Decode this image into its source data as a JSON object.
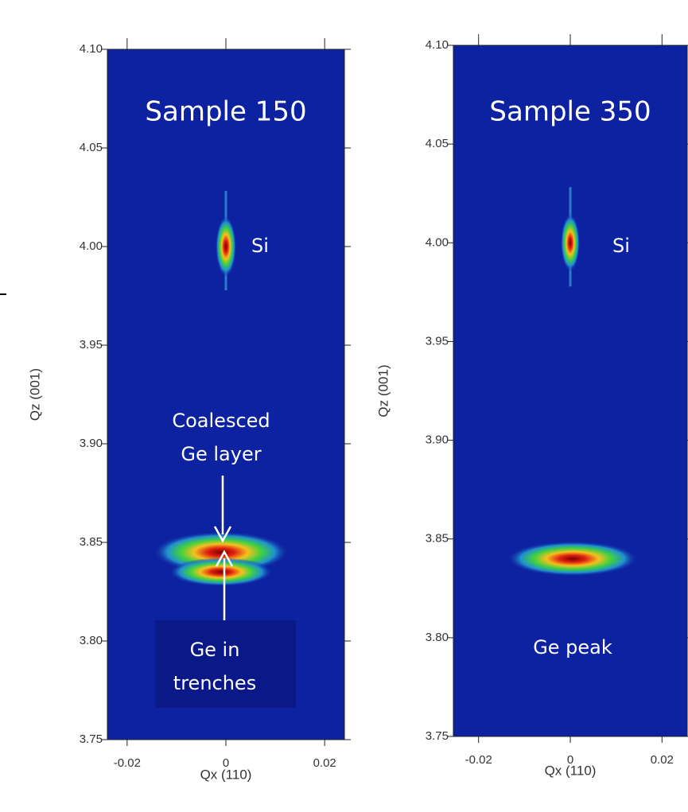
{
  "chart_data": [
    {
      "type": "rsm",
      "title": "Sample 150",
      "x_label": "Qx (110)",
      "y_label": "Qz (001)",
      "xlim": [
        -0.024,
        0.024
      ],
      "ylim": [
        3.75,
        4.1
      ],
      "xticks": [
        -0.02,
        0,
        0.02
      ],
      "yticks": [
        3.75,
        {
          "value": 3.8,
          "label": "3.80"
        },
        3.85,
        {
          "value": 3.9,
          "label": "3.90"
        },
        3.95,
        {
          "value": 4.0,
          "label": "4.00"
        },
        4.05,
        {
          "value": 4.1,
          "label": "4.10"
        }
      ],
      "peaks": {
        "x": [
          0,
          -0.001,
          -0.001
        ],
        "y": [
          4.0,
          3.845,
          3.835
        ]
      },
      "annotations": [
        [
          "Si"
        ],
        [
          "Coalesced",
          "Ge layer"
        ],
        [
          "Ge in",
          "trenches"
        ]
      ]
    },
    {
      "type": "rsm",
      "title": "Sample 350",
      "x_label": "Qx (110)",
      "y_label": "Qz (001)",
      "xlim": [
        -0.0255,
        0.0255
      ],
      "ylim": [
        3.75,
        4.1
      ],
      "xticks": [
        -0.02,
        0,
        0.02
      ],
      "yticks": [
        3.75,
        {
          "value": 3.8,
          "label": "3.80"
        },
        3.85,
        {
          "value": 3.9,
          "label": "3.90"
        },
        3.95,
        {
          "value": 4.0,
          "label": "4.00"
        },
        4.05,
        {
          "value": 4.1,
          "label": "4.10"
        }
      ],
      "peaks": {
        "x": [
          0,
          0.0005
        ],
        "y": [
          4.0,
          3.84
        ]
      },
      "annotations": [
        [
          "Si"
        ],
        [
          "Ge peak"
        ]
      ]
    }
  ]
}
